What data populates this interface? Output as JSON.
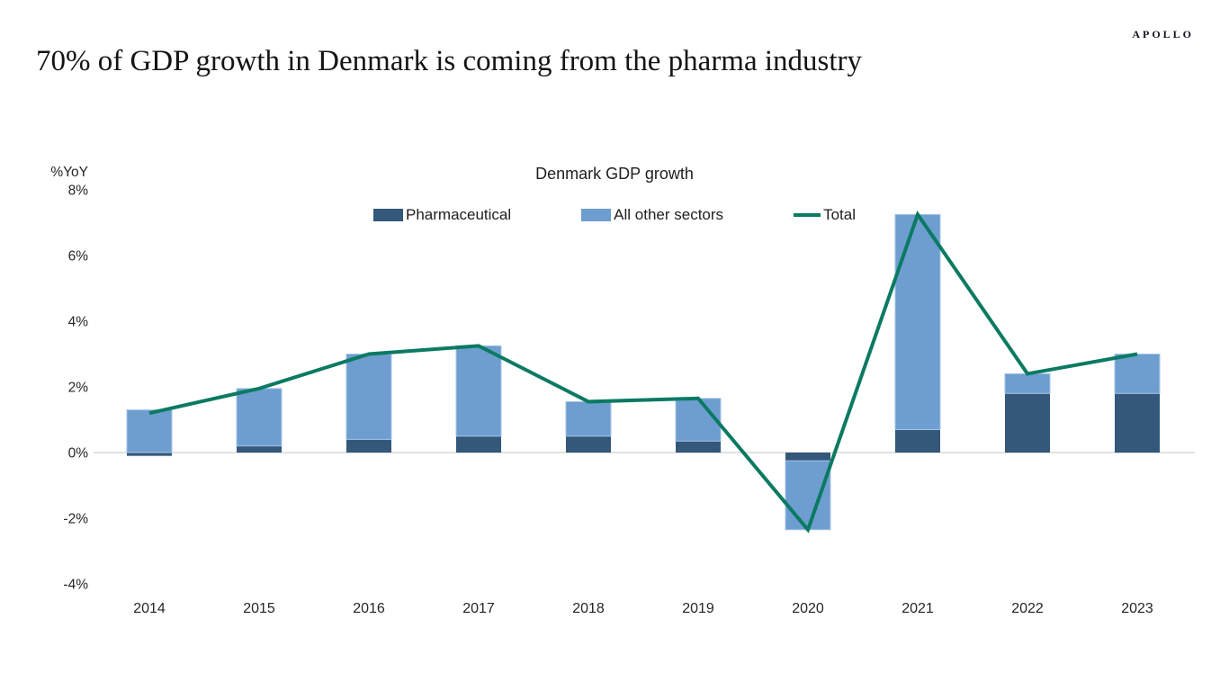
{
  "page": {
    "logo": "APOLLO",
    "title": "70% of GDP growth in Denmark is coming from the pharma industry"
  },
  "chart_data": {
    "type": "bar",
    "subtype": "stacked-bar-with-line-overlay",
    "title": "Denmark GDP growth",
    "ylabel": "%YoY",
    "xlabel": "",
    "ylim": [
      -4,
      8
    ],
    "grid": "zero-line-only",
    "legend_position": "top-center",
    "axis_line_color": "#D9D9D9",
    "categories": [
      "2014",
      "2015",
      "2016",
      "2017",
      "2018",
      "2019",
      "2020",
      "2021",
      "2022",
      "2023"
    ],
    "series": [
      {
        "name": "Pharmaceutical",
        "type": "bar",
        "color": "#33587A",
        "values": [
          -0.1,
          0.2,
          0.4,
          0.5,
          0.5,
          0.35,
          -0.25,
          0.7,
          1.8,
          1.8
        ]
      },
      {
        "name": "All other sectors",
        "type": "bar",
        "color": "#6D9ECF",
        "border": "#A6C5E8",
        "values": [
          1.3,
          1.75,
          2.6,
          2.75,
          1.05,
          1.3,
          -2.1,
          6.55,
          0.6,
          1.2
        ]
      },
      {
        "name": "Total",
        "type": "line",
        "color": "#0B7A62",
        "values": [
          1.2,
          1.95,
          3.0,
          3.25,
          1.55,
          1.65,
          -2.35,
          7.25,
          2.4,
          3.0
        ]
      }
    ],
    "yticks": {
      "values": [
        8,
        6,
        4,
        2,
        0,
        -2,
        -4
      ],
      "labels": [
        "8%",
        "6%",
        "4%",
        "2%",
        "0%",
        "-2%",
        "-4%"
      ]
    }
  }
}
